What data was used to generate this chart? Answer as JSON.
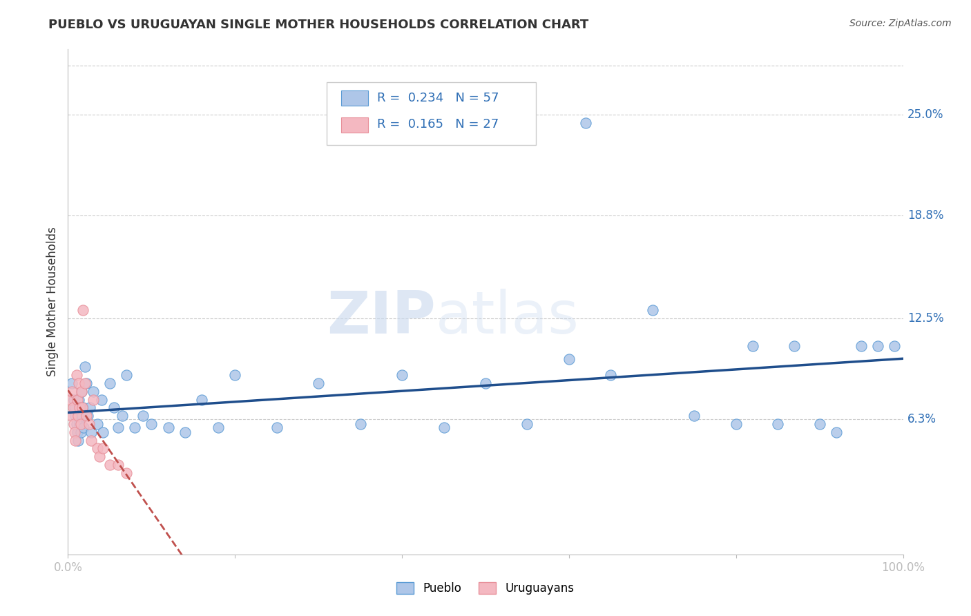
{
  "title": "PUEBLO VS URUGUAYAN SINGLE MOTHER HOUSEHOLDS CORRELATION CHART",
  "source": "Source: ZipAtlas.com",
  "ylabel": "Single Mother Households",
  "xlim": [
    0.0,
    1.0
  ],
  "ylim": [
    -0.02,
    0.29
  ],
  "ytick_labels": [
    "6.3%",
    "12.5%",
    "18.8%",
    "25.0%"
  ],
  "ytick_values": [
    0.063,
    0.125,
    0.188,
    0.25
  ],
  "watermark_zip": "ZIP",
  "watermark_atlas": "atlas",
  "pueblo_color": "#aec6e8",
  "pueblo_edge_color": "#5b9bd5",
  "uruguayan_color": "#f4b8c1",
  "uruguayan_edge_color": "#e8909a",
  "pueblo_R": 0.234,
  "pueblo_N": 57,
  "uruguayan_R": 0.165,
  "uruguayan_N": 27,
  "pueblo_line_color": "#1f4e8c",
  "uruguayan_line_color": "#c0504d",
  "grid_color": "#cccccc",
  "background_color": "#ffffff",
  "pueblo_x": [
    0.005,
    0.007,
    0.008,
    0.009,
    0.01,
    0.011,
    0.012,
    0.013,
    0.014,
    0.015,
    0.016,
    0.017,
    0.018,
    0.019,
    0.02,
    0.022,
    0.024,
    0.026,
    0.028,
    0.03,
    0.035,
    0.04,
    0.042,
    0.05,
    0.055,
    0.06,
    0.065,
    0.07,
    0.08,
    0.09,
    0.1,
    0.12,
    0.14,
    0.16,
    0.18,
    0.2,
    0.25,
    0.3,
    0.35,
    0.4,
    0.45,
    0.5,
    0.55,
    0.6,
    0.62,
    0.65,
    0.7,
    0.75,
    0.8,
    0.82,
    0.85,
    0.87,
    0.9,
    0.92,
    0.95,
    0.97,
    0.99
  ],
  "pueblo_y": [
    0.085,
    0.075,
    0.07,
    0.065,
    0.06,
    0.055,
    0.05,
    0.075,
    0.06,
    0.055,
    0.08,
    0.065,
    0.07,
    0.058,
    0.095,
    0.085,
    0.065,
    0.07,
    0.055,
    0.08,
    0.06,
    0.075,
    0.055,
    0.085,
    0.07,
    0.058,
    0.065,
    0.09,
    0.058,
    0.065,
    0.06,
    0.058,
    0.055,
    0.075,
    0.058,
    0.09,
    0.058,
    0.085,
    0.06,
    0.09,
    0.058,
    0.085,
    0.06,
    0.1,
    0.245,
    0.09,
    0.13,
    0.065,
    0.06,
    0.108,
    0.06,
    0.108,
    0.06,
    0.055,
    0.108,
    0.108,
    0.108
  ],
  "uruguayan_x": [
    0.003,
    0.004,
    0.005,
    0.006,
    0.007,
    0.008,
    0.009,
    0.01,
    0.011,
    0.012,
    0.013,
    0.014,
    0.015,
    0.016,
    0.017,
    0.018,
    0.02,
    0.022,
    0.025,
    0.028,
    0.03,
    0.035,
    0.038,
    0.042,
    0.05,
    0.06,
    0.07
  ],
  "uruguayan_y": [
    0.075,
    0.065,
    0.08,
    0.07,
    0.06,
    0.055,
    0.05,
    0.09,
    0.075,
    0.065,
    0.085,
    0.07,
    0.06,
    0.08,
    0.07,
    0.13,
    0.085,
    0.065,
    0.06,
    0.05,
    0.075,
    0.045,
    0.04,
    0.045,
    0.035,
    0.035,
    0.03
  ]
}
